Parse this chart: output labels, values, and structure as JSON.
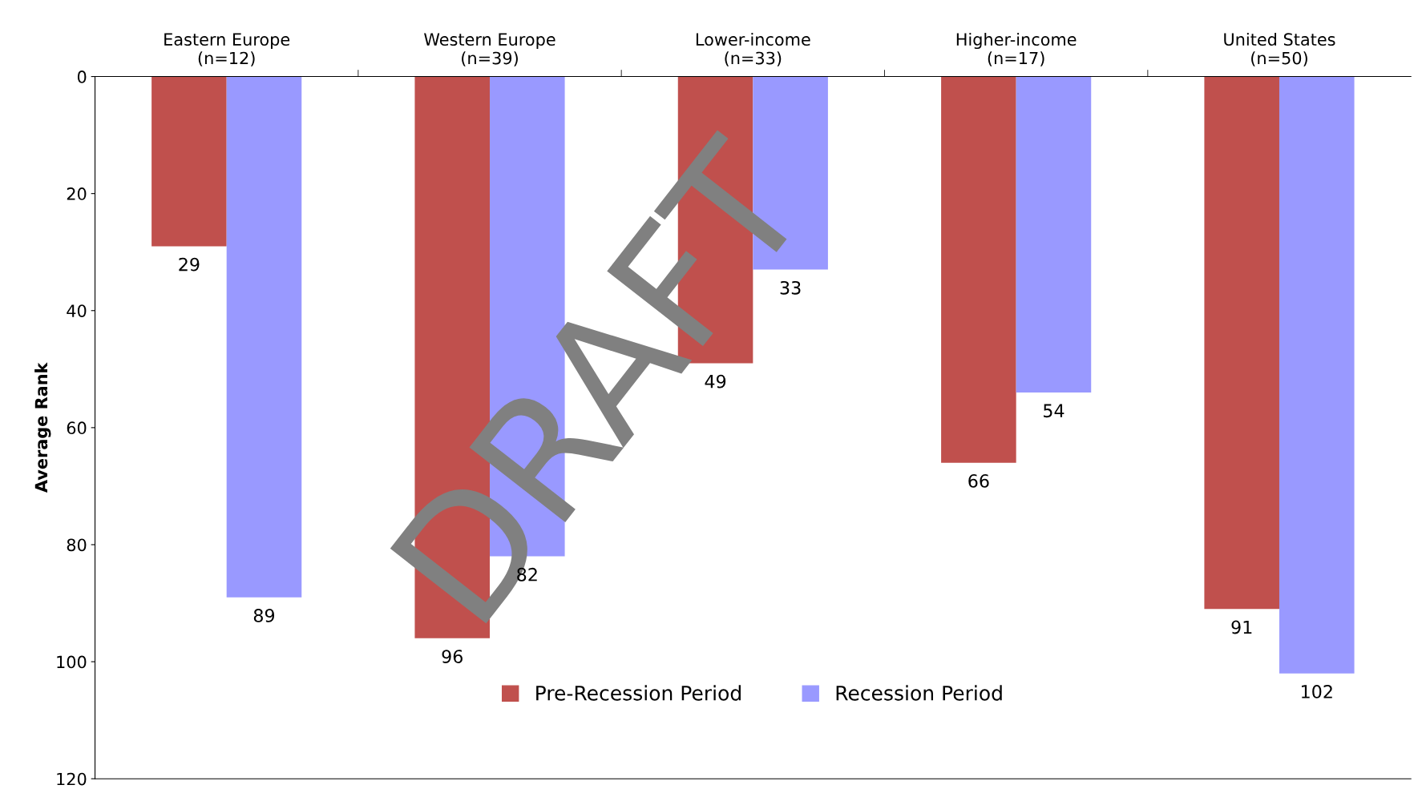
{
  "chart_data": {
    "type": "bar",
    "ylabel": "Average Rank",
    "categories": [
      "Eastern Europe\n(n=12)",
      "Western Europe\n(n=39)",
      "Lower-income\n(n=33)",
      "Higher-income\n(n=17)",
      "United States\n(n=50)"
    ],
    "series": [
      {
        "name": "Pre-Recession Period",
        "color": "#c0504d",
        "values": [
          29,
          96,
          49,
          66,
          91
        ]
      },
      {
        "name": "Recession Period",
        "color": "#9999ff",
        "values": [
          89,
          82,
          33,
          54,
          102
        ]
      }
    ],
    "ylim": [
      120,
      0
    ],
    "yticks": [
      0,
      20,
      40,
      60,
      80,
      100,
      120
    ],
    "data_labels": true,
    "legend": "bottom",
    "grid": false,
    "annotations": [
      "DRAFT"
    ]
  }
}
